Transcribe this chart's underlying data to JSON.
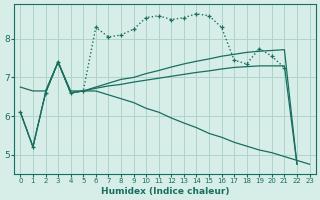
{
  "xlabel": "Humidex (Indice chaleur)",
  "background_color": "#d6ede8",
  "grid_color": "#afd4cc",
  "line_color": "#1a6e60",
  "xlim": [
    -0.5,
    23.5
  ],
  "ylim": [
    4.5,
    8.9
  ],
  "yticks": [
    5,
    6,
    7,
    8
  ],
  "xticks": [
    0,
    1,
    2,
    3,
    4,
    5,
    6,
    7,
    8,
    9,
    10,
    11,
    12,
    13,
    14,
    15,
    16,
    17,
    18,
    19,
    20,
    21,
    22,
    23
  ],
  "curve_dotted_x": [
    0,
    1,
    2,
    3,
    4,
    5,
    6,
    7,
    8,
    9,
    10,
    11,
    12,
    13,
    14,
    15,
    16,
    17,
    18,
    19,
    20,
    21
  ],
  "curve_dotted_y": [
    6.1,
    5.2,
    6.6,
    7.4,
    6.6,
    6.65,
    8.3,
    8.05,
    8.1,
    8.25,
    8.55,
    8.6,
    8.5,
    8.55,
    8.65,
    8.6,
    8.3,
    7.45,
    7.35,
    7.75,
    7.55,
    7.25
  ],
  "line_up_x": [
    0,
    1,
    2,
    3,
    4,
    5,
    6,
    7,
    8,
    9,
    10,
    11,
    12,
    13,
    14,
    15,
    16,
    17,
    18,
    19,
    20,
    21,
    22
  ],
  "line_up_y": [
    6.1,
    5.2,
    6.6,
    7.4,
    6.6,
    6.65,
    6.75,
    6.85,
    6.95,
    7.0,
    7.1,
    7.18,
    7.27,
    7.35,
    7.42,
    7.48,
    7.55,
    7.6,
    7.65,
    7.68,
    7.7,
    7.72,
    4.75
  ],
  "line_flat_x": [
    0,
    1,
    2,
    3,
    4,
    5,
    6,
    7,
    8,
    9,
    10,
    11,
    12,
    13,
    14,
    15,
    16,
    17,
    18,
    19,
    20,
    21,
    22
  ],
  "line_flat_y": [
    6.1,
    5.2,
    6.6,
    7.4,
    6.6,
    6.65,
    6.72,
    6.78,
    6.82,
    6.88,
    6.93,
    6.98,
    7.03,
    7.08,
    7.13,
    7.17,
    7.22,
    7.26,
    7.28,
    7.3,
    7.3,
    7.3,
    4.75
  ],
  "line_down_x": [
    0,
    1,
    2,
    3,
    4,
    5,
    6,
    7,
    8,
    9,
    10,
    11,
    12,
    13,
    14,
    15,
    16,
    17,
    18,
    19,
    20,
    21,
    22,
    23
  ],
  "line_down_y": [
    6.75,
    6.65,
    6.65,
    7.4,
    6.65,
    6.65,
    6.65,
    6.55,
    6.45,
    6.35,
    6.2,
    6.1,
    5.95,
    5.82,
    5.7,
    5.55,
    5.45,
    5.32,
    5.22,
    5.12,
    5.05,
    4.95,
    4.85,
    4.75
  ]
}
